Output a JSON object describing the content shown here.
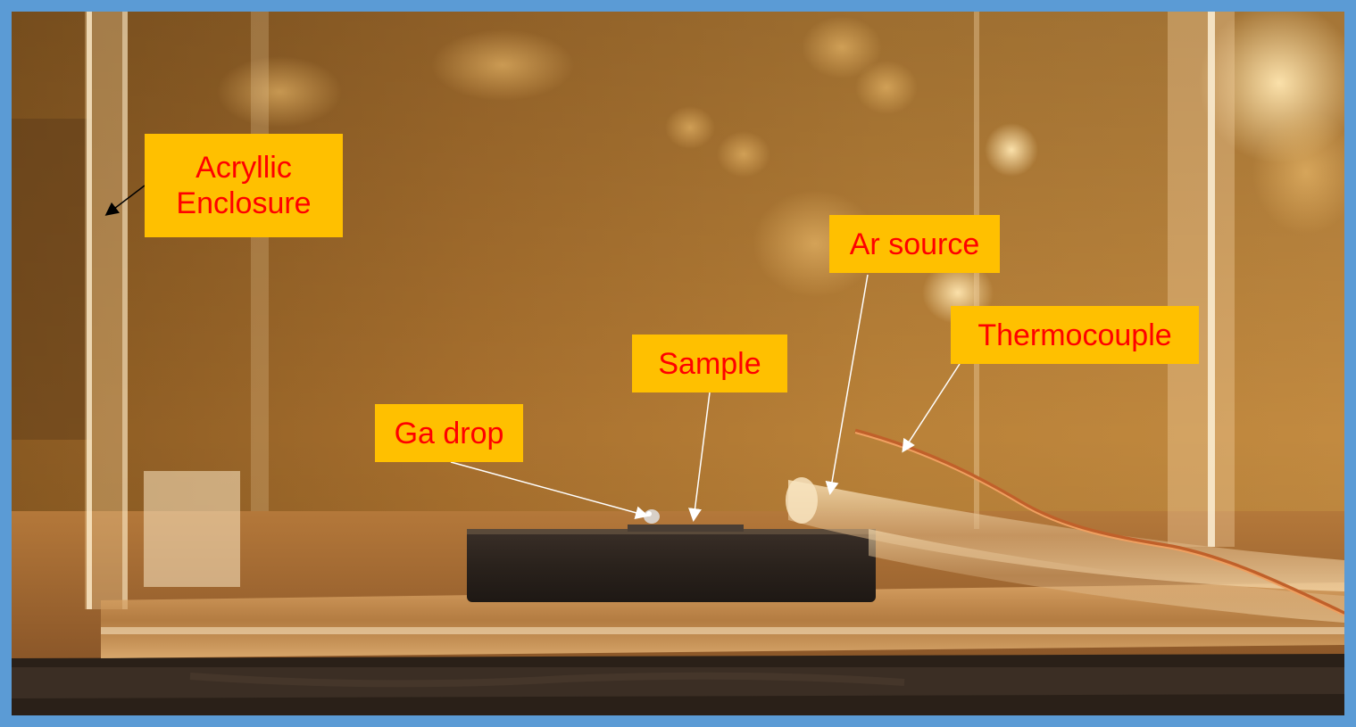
{
  "labels": {
    "acrylic_enclosure": "Acryllic\nEnclosure",
    "ar_source": "Ar source",
    "thermocouple": "Thermocouple",
    "sample": "Sample",
    "ga_drop": "Ga drop"
  },
  "colors": {
    "frame_border": "#5b9bd5",
    "label_background": "#ffc000",
    "label_text": "#ff0000",
    "photo_tone": "#b07830"
  }
}
